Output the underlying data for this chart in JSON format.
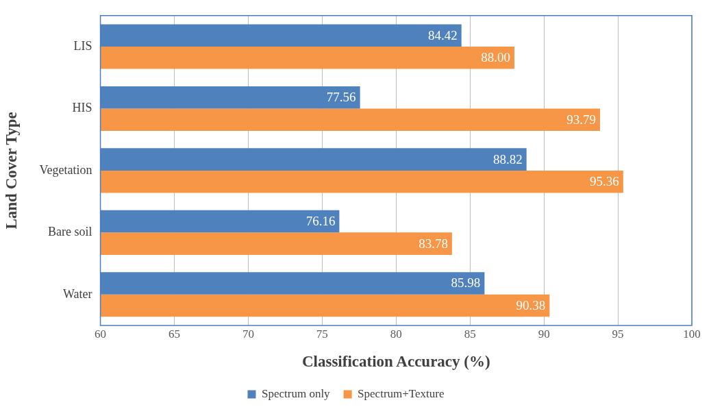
{
  "chart_data": {
    "type": "bar",
    "orientation": "horizontal",
    "categories": [
      "LIS",
      "HIS",
      "Vegetation",
      "Bare soil",
      "Water"
    ],
    "series": [
      {
        "name": "Spectrum only",
        "color": "#4f81bd",
        "values": [
          84.42,
          77.56,
          88.82,
          76.16,
          85.98
        ],
        "value_labels": [
          "84.42",
          "77.56",
          "88.82",
          "76.16",
          "85.98"
        ]
      },
      {
        "name": "Spectrum+Texture",
        "color": "#f79646",
        "values": [
          88.0,
          93.79,
          95.36,
          83.78,
          90.38
        ],
        "value_labels": [
          "88.00",
          "93.79",
          "95.36",
          "83.78",
          "90.38"
        ]
      }
    ],
    "xlabel": "Classification Accuracy (%)",
    "ylabel": "Land Cover Type",
    "xlim": [
      60,
      100
    ],
    "xticks": [
      60,
      65,
      70,
      75,
      80,
      85,
      90,
      95,
      100
    ],
    "grid": "x",
    "legend": "bottom"
  }
}
